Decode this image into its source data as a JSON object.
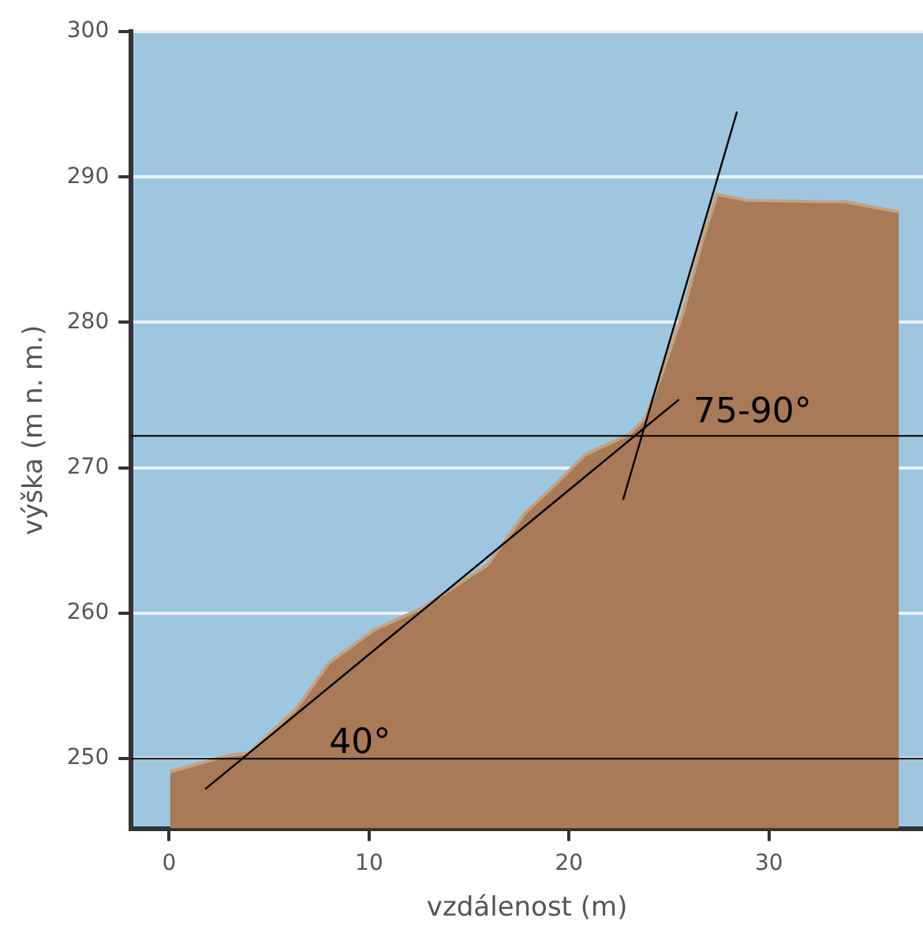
{
  "chart_data": {
    "type": "area",
    "xlabel": "vzdálenost (m)",
    "ylabel": "výška (m n. m.)",
    "xlim": [
      -1.9,
      37.7
    ],
    "ylim": [
      245.2,
      300
    ],
    "xticks": [
      0,
      10,
      20,
      30
    ],
    "yticks": [
      250,
      260,
      270,
      280,
      290,
      300
    ],
    "grid": "y",
    "legend": false,
    "marker": "none",
    "series": [
      {
        "type": "area",
        "color": "#a87a58",
        "x": [
          0.05,
          2.9,
          4.0,
          6.4,
          8.0,
          10.2,
          12.7,
          15.9,
          17.8,
          19.2,
          20.8,
          23.0,
          23.8,
          24.6,
          25.7,
          26.7,
          27.4,
          28.9,
          32.7,
          33.8,
          36.5
        ],
        "values": [
          249.1,
          250.2,
          250.4,
          253.5,
          256.6,
          258.8,
          260.4,
          263.3,
          266.9,
          268.7,
          270.9,
          272.3,
          273.4,
          276.3,
          280.7,
          285.8,
          288.8,
          288.4,
          288.3,
          288.3,
          287.6
        ]
      },
      {
        "type": "line",
        "color": "#000000",
        "x": [
          1.8,
          25.5
        ],
        "values": [
          247.9,
          274.7
        ]
      },
      {
        "type": "line",
        "color": "#000000",
        "x": [
          22.7,
          28.4
        ],
        "values": [
          267.8,
          294.5
        ]
      }
    ],
    "ref_lines": [
      {
        "axis": "y",
        "value": 272.2,
        "color": "#000000"
      },
      {
        "axis": "y",
        "value": 250,
        "color": "#000000"
      }
    ],
    "annotations": [
      "40°",
      "75-90°"
    ]
  }
}
